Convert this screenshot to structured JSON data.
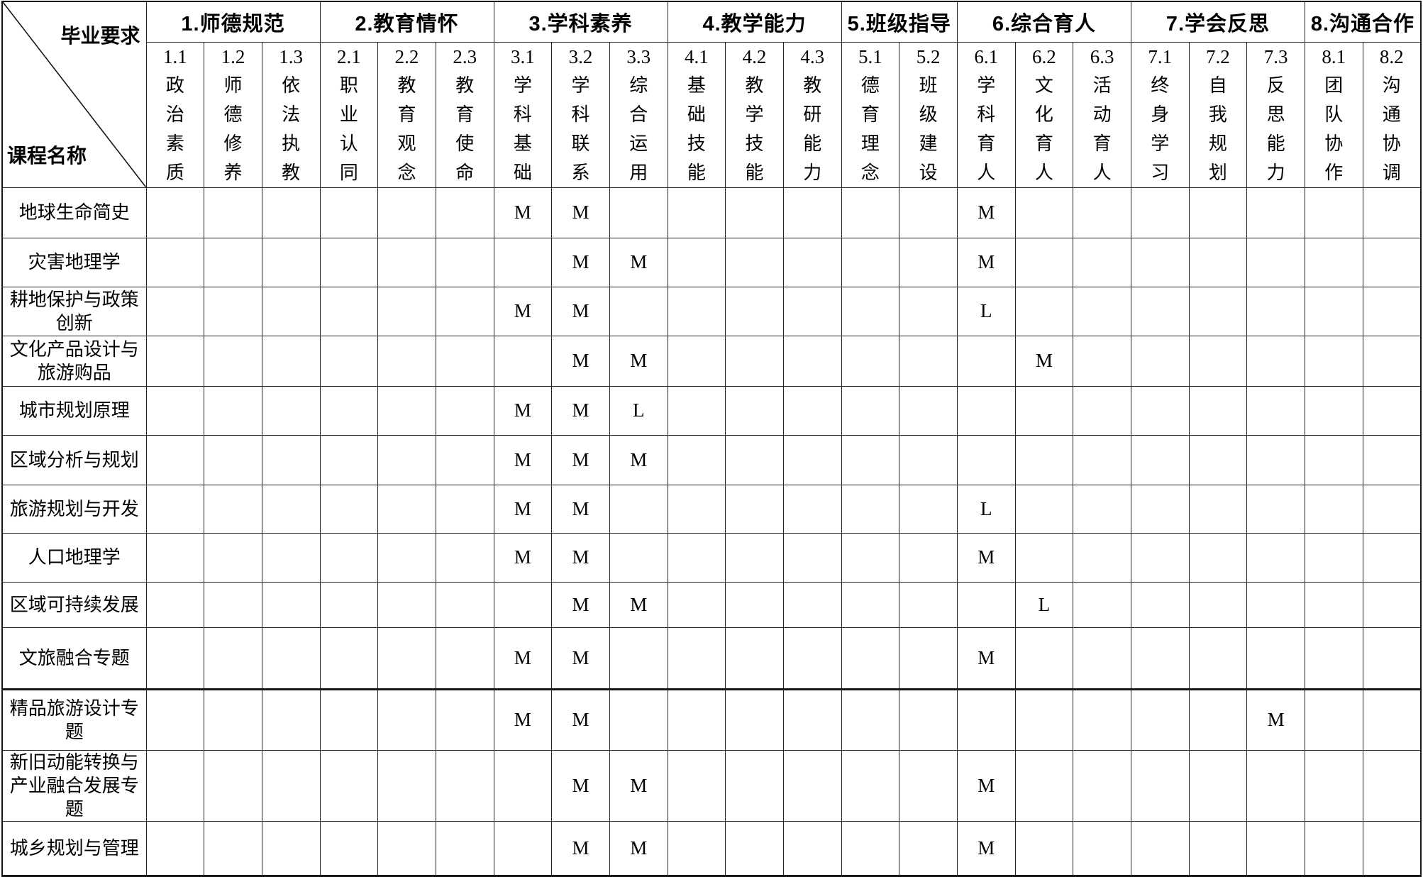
{
  "corner": {
    "top_label": "毕业要求",
    "bottom_label": "课程名称"
  },
  "column_order": [
    "1.1",
    "1.2",
    "1.3",
    "2.1",
    "2.2",
    "2.3",
    "3.1",
    "3.2",
    "3.3",
    "4.1",
    "4.2",
    "4.3",
    "5.1",
    "5.2",
    "6.1",
    "6.2",
    "6.3",
    "7.1",
    "7.2",
    "7.3",
    "8.1",
    "8.2"
  ],
  "groups": [
    {
      "label": "1.师德规范",
      "cols": [
        {
          "code": "1.1",
          "line1": "政治",
          "line2": "素质"
        },
        {
          "code": "1.2",
          "line1": "师德",
          "line2": "修养"
        },
        {
          "code": "1.3",
          "line1": "依法",
          "line2": "执教"
        }
      ]
    },
    {
      "label": "2.教育情怀",
      "cols": [
        {
          "code": "2.1",
          "line1": "职业",
          "line2": "认同"
        },
        {
          "code": "2.2",
          "line1": "教育",
          "line2": "观念"
        },
        {
          "code": "2.3",
          "line1": "教育",
          "line2": "使命"
        }
      ]
    },
    {
      "label": "3.学科素养",
      "cols": [
        {
          "code": "3.1",
          "line1": "学科",
          "line2": "基础"
        },
        {
          "code": "3.2",
          "line1": "学科",
          "line2": "联系"
        },
        {
          "code": "3.3",
          "line1": "综合",
          "line2": "运用"
        }
      ]
    },
    {
      "label": "4.教学能力",
      "cols": [
        {
          "code": "4.1",
          "line1": "基础",
          "line2": "技能"
        },
        {
          "code": "4.2",
          "line1": "教学",
          "line2": "技能"
        },
        {
          "code": "4.3",
          "line1": "教研",
          "line2": "能力"
        }
      ]
    },
    {
      "label": "5.班级指导",
      "cols": [
        {
          "code": "5.1",
          "line1": "德育",
          "line2": "理念"
        },
        {
          "code": "5.2",
          "line1": "班级",
          "line2": "建设"
        }
      ]
    },
    {
      "label": "6.综合育人",
      "cols": [
        {
          "code": "6.1",
          "line1": "学科",
          "line2": "育人"
        },
        {
          "code": "6.2",
          "line1": "文化",
          "line2": "育人"
        },
        {
          "code": "6.3",
          "line1": "活动",
          "line2": "育人"
        }
      ]
    },
    {
      "label": "7.学会反思",
      "cols": [
        {
          "code": "7.1",
          "line1": "终身",
          "line2": "学习"
        },
        {
          "code": "7.2",
          "line1": "自我",
          "line2": "规划"
        },
        {
          "code": "7.3",
          "line1": "反思",
          "line2": "能力"
        }
      ]
    },
    {
      "label": "8.沟通合作",
      "cols": [
        {
          "code": "8.1",
          "line1": "团队",
          "line2": "协作"
        },
        {
          "code": "8.2",
          "line1": "沟通",
          "line2": "协调"
        }
      ]
    }
  ],
  "rows": [
    {
      "course": "地球生命简史",
      "cells": {
        "3.1": "M",
        "3.2": "M",
        "6.1": "M"
      }
    },
    {
      "course": "灾害地理学",
      "cells": {
        "3.2": "M",
        "3.3": "M",
        "6.1": "M"
      }
    },
    {
      "course": "耕地保护与政策创新",
      "cells": {
        "3.1": "M",
        "3.2": "M",
        "6.1": "L"
      }
    },
    {
      "course": "文化产品设计与旅游购品",
      "cells": {
        "3.2": "M",
        "3.3": "M",
        "6.2": "M"
      }
    },
    {
      "course": "城市规划原理",
      "cells": {
        "3.1": "M",
        "3.2": "M",
        "3.3": "L"
      }
    },
    {
      "course": "区域分析与规划",
      "cells": {
        "3.1": "M",
        "3.2": "M",
        "3.3": "M"
      }
    },
    {
      "course": "旅游规划与开发",
      "cells": {
        "3.1": "M",
        "3.2": "M",
        "6.1": "L"
      }
    },
    {
      "course": "人口地理学",
      "cells": {
        "3.1": "M",
        "3.2": "M",
        "6.1": "M"
      }
    },
    {
      "course": "区域可持续发展",
      "cells": {
        "3.2": "M",
        "3.3": "M",
        "6.2": "L"
      }
    },
    {
      "course": "文旅融合专题",
      "cells": {
        "3.1": "M",
        "3.2": "M",
        "6.1": "M"
      }
    },
    {
      "course": "精品旅游设计专题",
      "cells": {
        "3.1": "M",
        "3.2": "M",
        "7.3": "M"
      }
    },
    {
      "course": "新旧动能转换与产业融合发展专题",
      "cells": {
        "3.2": "M",
        "3.3": "M",
        "6.1": "M"
      }
    },
    {
      "course": "城乡规划与管理",
      "cells": {
        "3.2": "M",
        "3.3": "M",
        "6.1": "M"
      }
    }
  ]
}
